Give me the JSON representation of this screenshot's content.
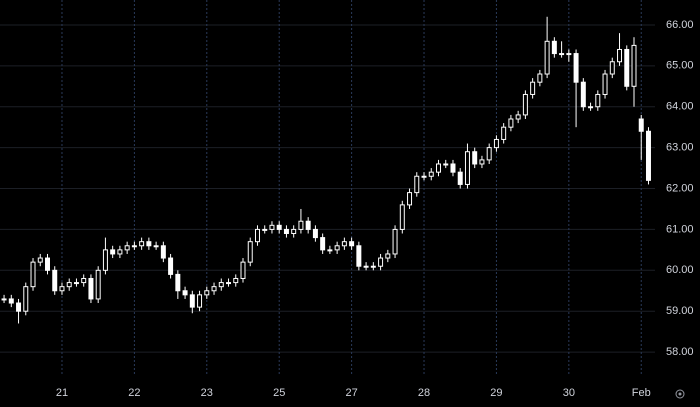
{
  "chart_data": {
    "type": "candlestick",
    "x": [
      0.2,
      0.3,
      0.4,
      0.5,
      0.6,
      0.7,
      0.8,
      0.9,
      1.0,
      1.1,
      1.2,
      1.3,
      1.4,
      1.5,
      1.6,
      1.7,
      1.8,
      1.9,
      2.0,
      2.1,
      2.2,
      2.3,
      2.4,
      2.5,
      2.6,
      2.7,
      2.8,
      2.9,
      3.0,
      3.1,
      3.2,
      3.3,
      3.4,
      3.5,
      3.6,
      3.7,
      3.8,
      3.9,
      4.0,
      4.1,
      4.2,
      4.3,
      4.4,
      4.5,
      4.6,
      4.7,
      4.8,
      4.9,
      5.0,
      5.1,
      5.2,
      5.3,
      5.4,
      5.5,
      5.6,
      5.7,
      5.8,
      5.9,
      6.0,
      6.1,
      6.2,
      6.3,
      6.4,
      6.5,
      6.6,
      6.7,
      6.8,
      6.9,
      7.0,
      7.1,
      7.2,
      7.3,
      7.4,
      7.5,
      7.6,
      7.7,
      7.8,
      7.9,
      8.0,
      8.1,
      8.2,
      8.3,
      8.4,
      8.5,
      8.6,
      8.7,
      8.8,
      8.9,
      9.0,
      9.1
    ],
    "open": [
      59.3,
      59.3,
      59.2,
      59.0,
      59.6,
      60.2,
      60.3,
      60.0,
      59.5,
      59.6,
      59.7,
      59.7,
      59.8,
      59.3,
      60.0,
      60.5,
      60.4,
      60.5,
      60.6,
      60.6,
      60.7,
      60.6,
      60.6,
      60.3,
      59.9,
      59.5,
      59.4,
      59.1,
      59.4,
      59.5,
      59.6,
      59.7,
      59.7,
      59.8,
      60.2,
      60.7,
      61.0,
      61.0,
      61.1,
      61.0,
      60.9,
      61.0,
      61.2,
      61.0,
      60.8,
      60.5,
      60.5,
      60.6,
      60.7,
      60.6,
      60.1,
      60.1,
      60.1,
      60.3,
      60.4,
      61.0,
      61.6,
      61.9,
      62.3,
      62.3,
      62.4,
      62.6,
      62.6,
      62.4,
      62.1,
      62.9,
      62.6,
      62.7,
      63.0,
      63.2,
      63.5,
      63.7,
      63.8,
      64.3,
      64.6,
      64.8,
      65.6,
      65.3,
      65.3,
      65.3,
      64.6,
      64.0,
      64.0,
      64.3,
      64.8,
      65.1,
      65.4,
      64.5,
      63.7,
      63.4
    ],
    "high": [
      59.4,
      59.4,
      59.3,
      59.7,
      60.3,
      60.4,
      60.4,
      60.1,
      59.7,
      59.8,
      59.8,
      59.9,
      59.9,
      60.1,
      60.8,
      60.6,
      60.6,
      60.7,
      60.7,
      60.8,
      60.8,
      60.7,
      60.7,
      60.4,
      60.0,
      59.6,
      59.5,
      59.5,
      59.6,
      59.7,
      59.8,
      59.8,
      59.9,
      60.3,
      60.8,
      61.1,
      61.1,
      61.2,
      61.2,
      61.1,
      61.1,
      61.5,
      61.3,
      61.1,
      60.9,
      60.6,
      60.7,
      60.8,
      60.8,
      60.7,
      60.2,
      60.2,
      60.4,
      60.5,
      61.1,
      61.7,
      62.0,
      62.4,
      62.4,
      62.5,
      62.7,
      62.7,
      62.7,
      62.5,
      63.1,
      63.0,
      62.8,
      63.1,
      63.3,
      63.6,
      63.8,
      63.9,
      64.4,
      64.7,
      64.9,
      66.2,
      65.7,
      65.6,
      65.4,
      65.4,
      64.7,
      64.1,
      64.4,
      64.9,
      65.2,
      65.8,
      65.5,
      65.7,
      63.8,
      63.5
    ],
    "low": [
      59.2,
      59.1,
      58.7,
      58.9,
      59.5,
      60.1,
      59.9,
      59.4,
      59.4,
      59.5,
      59.6,
      59.6,
      59.2,
      59.2,
      59.9,
      60.3,
      60.3,
      60.4,
      60.5,
      60.5,
      60.5,
      60.5,
      60.2,
      59.8,
      59.3,
      59.3,
      58.95,
      59.0,
      59.3,
      59.4,
      59.5,
      59.6,
      59.6,
      59.7,
      60.1,
      60.6,
      60.9,
      60.9,
      60.9,
      60.8,
      60.8,
      60.9,
      60.9,
      60.7,
      60.4,
      60.4,
      60.4,
      60.5,
      60.5,
      60.0,
      60.0,
      60.0,
      60.0,
      60.2,
      60.3,
      60.9,
      61.5,
      61.8,
      62.2,
      62.2,
      62.3,
      62.5,
      62.3,
      62.0,
      62.0,
      62.5,
      62.5,
      62.6,
      62.9,
      63.1,
      63.4,
      63.6,
      63.7,
      64.2,
      64.5,
      64.7,
      65.2,
      65.2,
      65.1,
      63.5,
      63.9,
      63.9,
      63.9,
      64.2,
      64.7,
      65.0,
      64.4,
      64.0,
      62.7,
      62.1
    ],
    "close": [
      59.3,
      59.2,
      59.0,
      59.6,
      60.2,
      60.3,
      60.0,
      59.5,
      59.6,
      59.7,
      59.7,
      59.8,
      59.3,
      60.0,
      60.5,
      60.4,
      60.5,
      60.6,
      60.6,
      60.7,
      60.6,
      60.6,
      60.3,
      59.9,
      59.5,
      59.4,
      59.1,
      59.4,
      59.5,
      59.6,
      59.7,
      59.7,
      59.8,
      60.2,
      60.7,
      61.0,
      61.0,
      61.1,
      61.0,
      60.9,
      61.0,
      61.2,
      61.0,
      60.8,
      60.5,
      60.5,
      60.6,
      60.7,
      60.6,
      60.1,
      60.1,
      60.1,
      60.3,
      60.4,
      61.0,
      61.6,
      61.9,
      62.3,
      62.3,
      62.4,
      62.6,
      62.6,
      62.4,
      62.1,
      62.9,
      62.6,
      62.7,
      63.0,
      63.2,
      63.5,
      63.7,
      63.8,
      64.3,
      64.6,
      64.8,
      65.6,
      65.3,
      65.3,
      65.3,
      64.6,
      64.0,
      64.0,
      64.3,
      64.8,
      65.1,
      65.4,
      64.5,
      65.5,
      63.4,
      62.2
    ],
    "up_color": "#000000",
    "down_color": "#ffffff",
    "wick_color": "#ffffff",
    "xlim": [
      0.144,
      9.19
    ],
    "xticks": [
      {
        "value": 1,
        "label": "21"
      },
      {
        "value": 2,
        "label": "22"
      },
      {
        "value": 3,
        "label": "23"
      },
      {
        "value": 4,
        "label": "25"
      },
      {
        "value": 5,
        "label": "27"
      },
      {
        "value": 6,
        "label": "28"
      },
      {
        "value": 7,
        "label": "29"
      },
      {
        "value": 8,
        "label": "30"
      },
      {
        "value": 9,
        "label": "Feb"
      }
    ],
    "ylim": [
      57.44,
      66.61
    ],
    "yticks": [
      {
        "value": 58,
        "label": "58.00"
      },
      {
        "value": 59,
        "label": "59.00"
      },
      {
        "value": 60,
        "label": "60.00"
      },
      {
        "value": 61,
        "label": "61.00"
      },
      {
        "value": 62,
        "label": "62.00"
      },
      {
        "value": 63,
        "label": "63.00"
      },
      {
        "value": 64,
        "label": "64.00"
      },
      {
        "value": 65,
        "label": "65.00"
      },
      {
        "value": 66,
        "label": "66.00"
      }
    ],
    "grid": true
  }
}
